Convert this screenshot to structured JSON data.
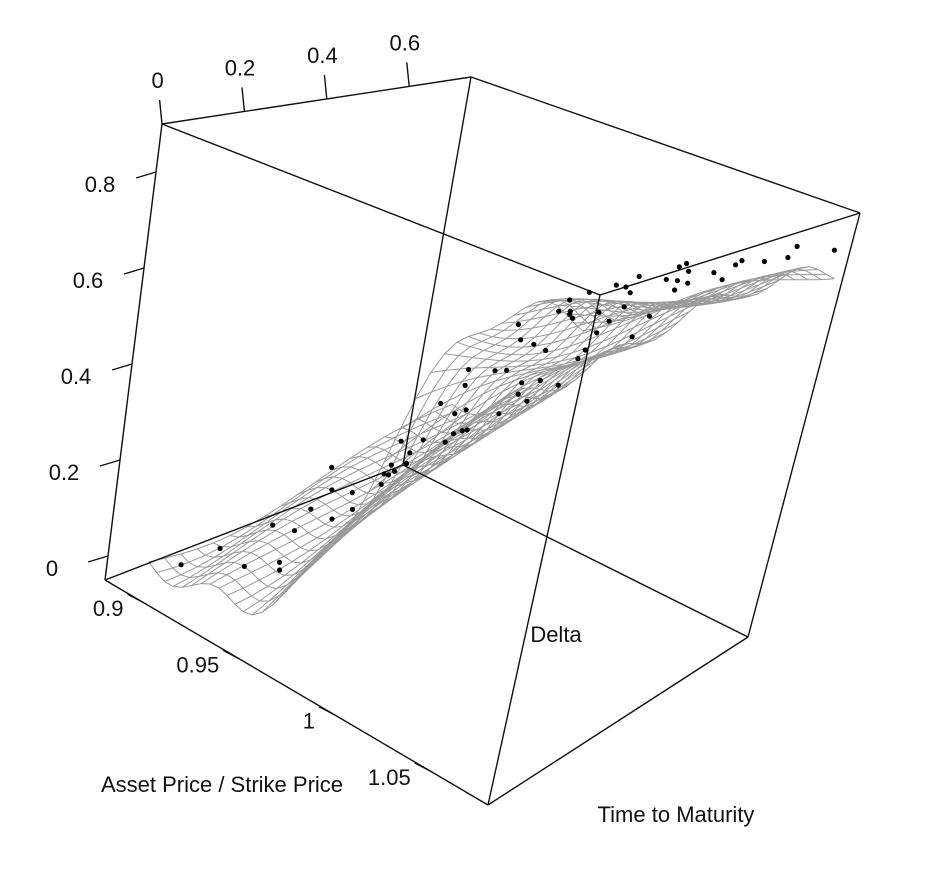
{
  "chart_data": {
    "type": "scatter",
    "projection": "3d",
    "title": "",
    "xlabel": "Asset Price / Strike Price",
    "ylabel": "Time to Maturity",
    "zlabel": "Delta",
    "x_ticks": [
      "0.9",
      "0.95",
      "1",
      "1.05"
    ],
    "y_ticks": [
      "0",
      "0.2",
      "0.4",
      "0.6"
    ],
    "z_ticks": [
      "0",
      "0.2",
      "0.4",
      "0.6",
      "0.8"
    ],
    "xlim": [
      0.88,
      1.08
    ],
    "ylim": [
      0.0,
      0.75
    ],
    "zlim": [
      -0.05,
      0.9
    ],
    "surface": "fitted mesh",
    "points": [
      [
        0.905,
        0.06,
        0.02
      ],
      [
        0.912,
        0.12,
        0.05
      ],
      [
        0.918,
        0.22,
        0.08
      ],
      [
        0.921,
        0.35,
        0.12
      ],
      [
        0.925,
        0.48,
        0.14
      ],
      [
        0.928,
        0.62,
        0.17
      ],
      [
        0.932,
        0.08,
        0.07
      ],
      [
        0.936,
        0.18,
        0.12
      ],
      [
        0.94,
        0.3,
        0.17
      ],
      [
        0.943,
        0.42,
        0.2
      ],
      [
        0.947,
        0.55,
        0.24
      ],
      [
        0.951,
        0.68,
        0.27
      ],
      [
        0.954,
        0.05,
        0.12
      ],
      [
        0.958,
        0.15,
        0.2
      ],
      [
        0.961,
        0.27,
        0.26
      ],
      [
        0.965,
        0.39,
        0.3
      ],
      [
        0.968,
        0.51,
        0.33
      ],
      [
        0.972,
        0.64,
        0.36
      ],
      [
        0.975,
        0.1,
        0.27
      ],
      [
        0.979,
        0.21,
        0.36
      ],
      [
        0.982,
        0.33,
        0.42
      ],
      [
        0.986,
        0.45,
        0.45
      ],
      [
        0.989,
        0.58,
        0.47
      ],
      [
        0.993,
        0.7,
        0.49
      ],
      [
        0.996,
        0.04,
        0.4
      ],
      [
        1.0,
        0.14,
        0.52
      ],
      [
        1.003,
        0.26,
        0.56
      ],
      [
        1.007,
        0.37,
        0.58
      ],
      [
        1.01,
        0.49,
        0.59
      ],
      [
        1.014,
        0.61,
        0.6
      ],
      [
        1.017,
        0.09,
        0.6
      ],
      [
        1.021,
        0.2,
        0.67
      ],
      [
        1.024,
        0.32,
        0.69
      ],
      [
        1.028,
        0.44,
        0.69
      ],
      [
        1.031,
        0.56,
        0.7
      ],
      [
        1.035,
        0.67,
        0.7
      ],
      [
        1.038,
        0.07,
        0.76
      ],
      [
        1.042,
        0.18,
        0.79
      ],
      [
        1.045,
        0.29,
        0.8
      ],
      [
        1.049,
        0.41,
        0.79
      ],
      [
        1.052,
        0.53,
        0.78
      ],
      [
        1.056,
        0.65,
        0.78
      ],
      [
        1.06,
        0.11,
        0.85
      ],
      [
        1.063,
        0.23,
        0.86
      ],
      [
        1.067,
        0.35,
        0.85
      ],
      [
        1.07,
        0.47,
        0.84
      ],
      [
        1.074,
        0.6,
        0.83
      ],
      [
        1.077,
        0.72,
        0.82
      ],
      [
        0.91,
        0.4,
        0.13
      ],
      [
        0.915,
        0.55,
        0.15
      ],
      [
        0.935,
        0.5,
        0.21
      ],
      [
        0.945,
        0.1,
        0.1
      ],
      [
        0.96,
        0.6,
        0.33
      ],
      [
        0.97,
        0.2,
        0.28
      ],
      [
        0.985,
        0.62,
        0.47
      ],
      [
        0.99,
        0.25,
        0.45
      ],
      [
        1.005,
        0.55,
        0.59
      ],
      [
        1.012,
        0.3,
        0.62
      ],
      [
        1.025,
        0.6,
        0.7
      ],
      [
        1.033,
        0.25,
        0.73
      ],
      [
        1.04,
        0.5,
        0.78
      ],
      [
        1.047,
        0.12,
        0.79
      ],
      [
        1.058,
        0.4,
        0.84
      ],
      [
        1.065,
        0.68,
        0.82
      ],
      [
        1.072,
        0.15,
        0.86
      ],
      [
        0.93,
        0.25,
        0.13
      ],
      [
        0.95,
        0.35,
        0.22
      ],
      [
        0.962,
        0.45,
        0.3
      ],
      [
        0.978,
        0.55,
        0.41
      ],
      [
        0.994,
        0.35,
        0.52
      ],
      [
        1.008,
        0.15,
        0.6
      ],
      [
        1.02,
        0.42,
        0.67
      ],
      [
        1.036,
        0.38,
        0.76
      ],
      [
        1.05,
        0.62,
        0.78
      ],
      [
        1.062,
        0.05,
        0.83
      ],
      [
        1.075,
        0.3,
        0.85
      ]
    ]
  }
}
